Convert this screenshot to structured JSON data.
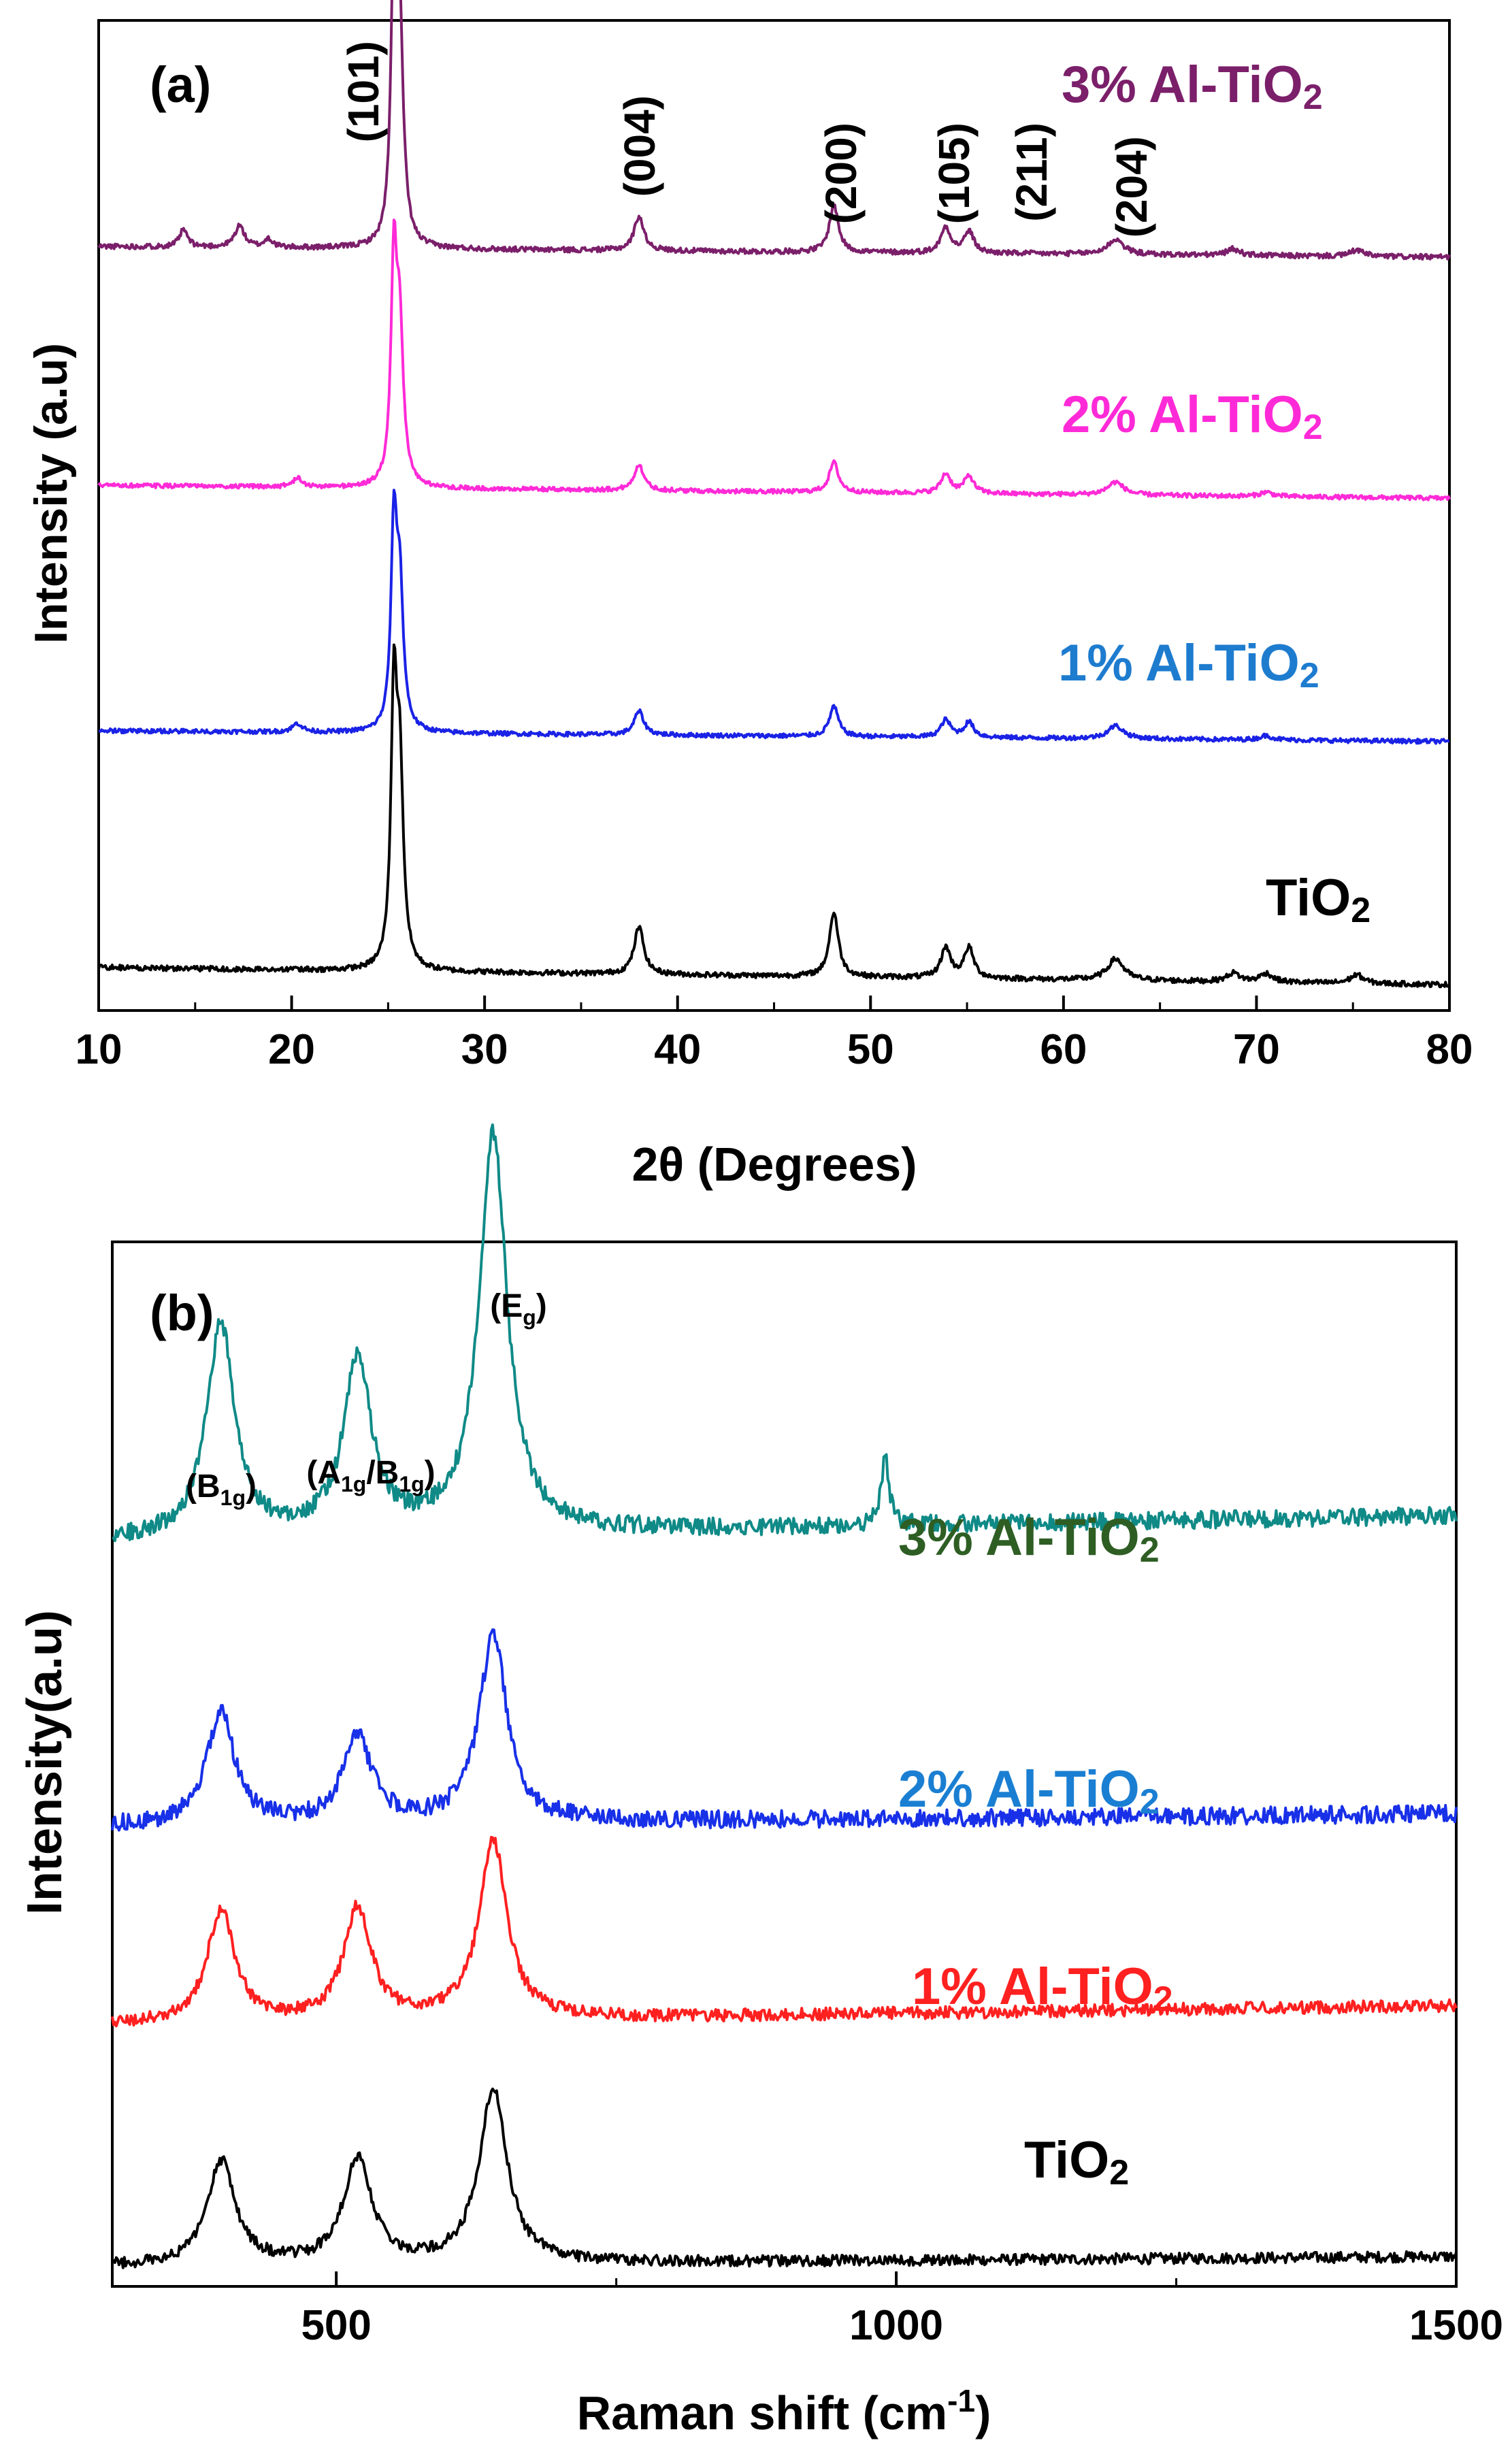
{
  "colors": {
    "xrd_3": "#7b1f6a",
    "xrd_2": "#ff2ad7",
    "xrd_1": "#1a22e6",
    "xrd_0": "#000000",
    "xrd_label_1": "#1e7ccf",
    "raman_3": "#0f8a87",
    "raman_3_label": "#2e5e24",
    "raman_2": "#1830e8",
    "raman_2_label": "#1a7fd2",
    "raman_1": "#ff2020",
    "raman_0": "#000000"
  },
  "chart_data": [
    {
      "type": "line",
      "panel": "(a)",
      "xlabel": "2θ (Degrees)",
      "ylabel": "Intensity (a.u)",
      "xlim": [
        10,
        80
      ],
      "xticks": [
        "10",
        "20",
        "30",
        "40",
        "50",
        "60",
        "70",
        "80"
      ],
      "ylim": [
        0,
        4.6
      ],
      "yticks_shown": false,
      "peak_labels": [
        "(101)",
        "(004)",
        "(200)",
        "(105)",
        "(211)",
        "(204)"
      ],
      "peak_label_positions_2theta": [
        25.3,
        37.8,
        48.0,
        53.9,
        55.1,
        62.7
      ],
      "series": [
        {
          "name": "3% Al-TiO",
          "subscript": "2",
          "offset": 3.45,
          "background": 0.1,
          "background_slope": -0.05,
          "noise": 0.012,
          "peaks": [
            [
              14.4,
              0.08,
              0.25
            ],
            [
              17.3,
              0.1,
              0.3
            ],
            [
              18.8,
              0.04,
              0.25
            ],
            [
              25.3,
              1.25,
              0.18
            ],
            [
              25.6,
              0.95,
              0.22
            ],
            [
              38.0,
              0.16,
              0.3
            ],
            [
              48.1,
              0.22,
              0.28
            ],
            [
              53.9,
              0.12,
              0.3
            ],
            [
              55.1,
              0.1,
              0.3
            ],
            [
              62.7,
              0.07,
              0.5
            ],
            [
              68.8,
              0.03,
              0.4
            ],
            [
              75.2,
              0.03,
              0.4
            ]
          ]
        },
        {
          "name": "2% Al-TiO",
          "subscript": "2",
          "offset": 2.32,
          "background": 0.12,
          "background_slope": -0.06,
          "noise": 0.01,
          "peaks": [
            [
              20.3,
              0.04,
              0.3
            ],
            [
              25.3,
              1.0,
              0.18
            ],
            [
              25.6,
              0.7,
              0.22
            ],
            [
              38.0,
              0.12,
              0.3
            ],
            [
              48.1,
              0.14,
              0.28
            ],
            [
              53.9,
              0.09,
              0.3
            ],
            [
              55.1,
              0.08,
              0.3
            ],
            [
              62.7,
              0.06,
              0.5
            ],
            [
              70.5,
              0.02,
              0.4
            ]
          ]
        },
        {
          "name": "1% Al-TiO",
          "subscript": "2",
          "offset": 1.2,
          "background": 0.1,
          "background_slope": -0.05,
          "noise": 0.01,
          "peaks": [
            [
              20.3,
              0.04,
              0.3
            ],
            [
              25.3,
              0.9,
              0.18
            ],
            [
              25.6,
              0.65,
              0.22
            ],
            [
              38.0,
              0.11,
              0.3
            ],
            [
              48.1,
              0.14,
              0.28
            ],
            [
              53.9,
              0.08,
              0.3
            ],
            [
              55.1,
              0.07,
              0.3
            ],
            [
              62.7,
              0.06,
              0.5
            ],
            [
              70.5,
              0.02,
              0.4
            ]
          ]
        },
        {
          "name": "TiO",
          "subscript": "2",
          "offset": 0.0,
          "background": 0.2,
          "background_slope": -0.08,
          "noise": 0.012,
          "peaks": [
            [
              25.3,
              1.2,
              0.18
            ],
            [
              25.6,
              0.9,
              0.22
            ],
            [
              38.0,
              0.22,
              0.3
            ],
            [
              48.1,
              0.3,
              0.28
            ],
            [
              53.9,
              0.14,
              0.3
            ],
            [
              55.1,
              0.14,
              0.3
            ],
            [
              62.7,
              0.1,
              0.5
            ],
            [
              68.8,
              0.04,
              0.4
            ],
            [
              70.5,
              0.04,
              0.4
            ],
            [
              75.2,
              0.04,
              0.4
            ]
          ]
        }
      ]
    },
    {
      "type": "line",
      "panel": "(b)",
      "xlabel": "Raman shift  (cm",
      "xlabel_sup": "-1",
      "xlabel_end": ")",
      "ylabel": "Intensity(a.u)",
      "xlim": [
        300,
        1500
      ],
      "xticks": [
        "500",
        "1000",
        "1500"
      ],
      "ylim": [
        0,
        4.2
      ],
      "yticks_shown": false,
      "peak_labels": [
        {
          "text": "(B",
          "sub": "1g",
          "end": ")",
          "x": 397
        },
        {
          "text": "(A",
          "sub": "1g",
          "mid": "/B",
          "sub2": "1g",
          "end": ")",
          "x": 519
        },
        {
          "text": "(E",
          "sub": "g",
          "end": ")",
          "x": 640
        }
      ],
      "series": [
        {
          "name": "3% Al-TiO",
          "subscript": "2",
          "offset": 2.95,
          "background": 0.05,
          "background_slope": 0.1,
          "noise": 0.035,
          "peaks": [
            [
              397,
              0.85,
              15
            ],
            [
              519,
              0.7,
              15
            ],
            [
              640,
              1.6,
              15
            ],
            [
              990,
              0.28,
              4
            ]
          ]
        },
        {
          "name": "2% Al-TiO",
          "subscript": "2",
          "offset": 1.8,
          "background": 0.05,
          "background_slope": 0.05,
          "noise": 0.035,
          "peaks": [
            [
              397,
              0.45,
              15
            ],
            [
              519,
              0.35,
              15
            ],
            [
              640,
              0.75,
              15
            ]
          ]
        },
        {
          "name": "1% Al-TiO",
          "subscript": "2",
          "offset": 1.02,
          "background": 0.03,
          "background_slope": 0.08,
          "noise": 0.025,
          "peaks": [
            [
              397,
              0.45,
              15
            ],
            [
              519,
              0.45,
              15
            ],
            [
              640,
              0.72,
              15
            ]
          ]
        },
        {
          "name": "TiO",
          "subscript": "2",
          "offset": 0.0,
          "background": 0.08,
          "background_slope": 0.04,
          "noise": 0.022,
          "peaks": [
            [
              397,
              0.42,
              15
            ],
            [
              519,
              0.42,
              15
            ],
            [
              640,
              0.7,
              15
            ]
          ]
        }
      ]
    }
  ]
}
